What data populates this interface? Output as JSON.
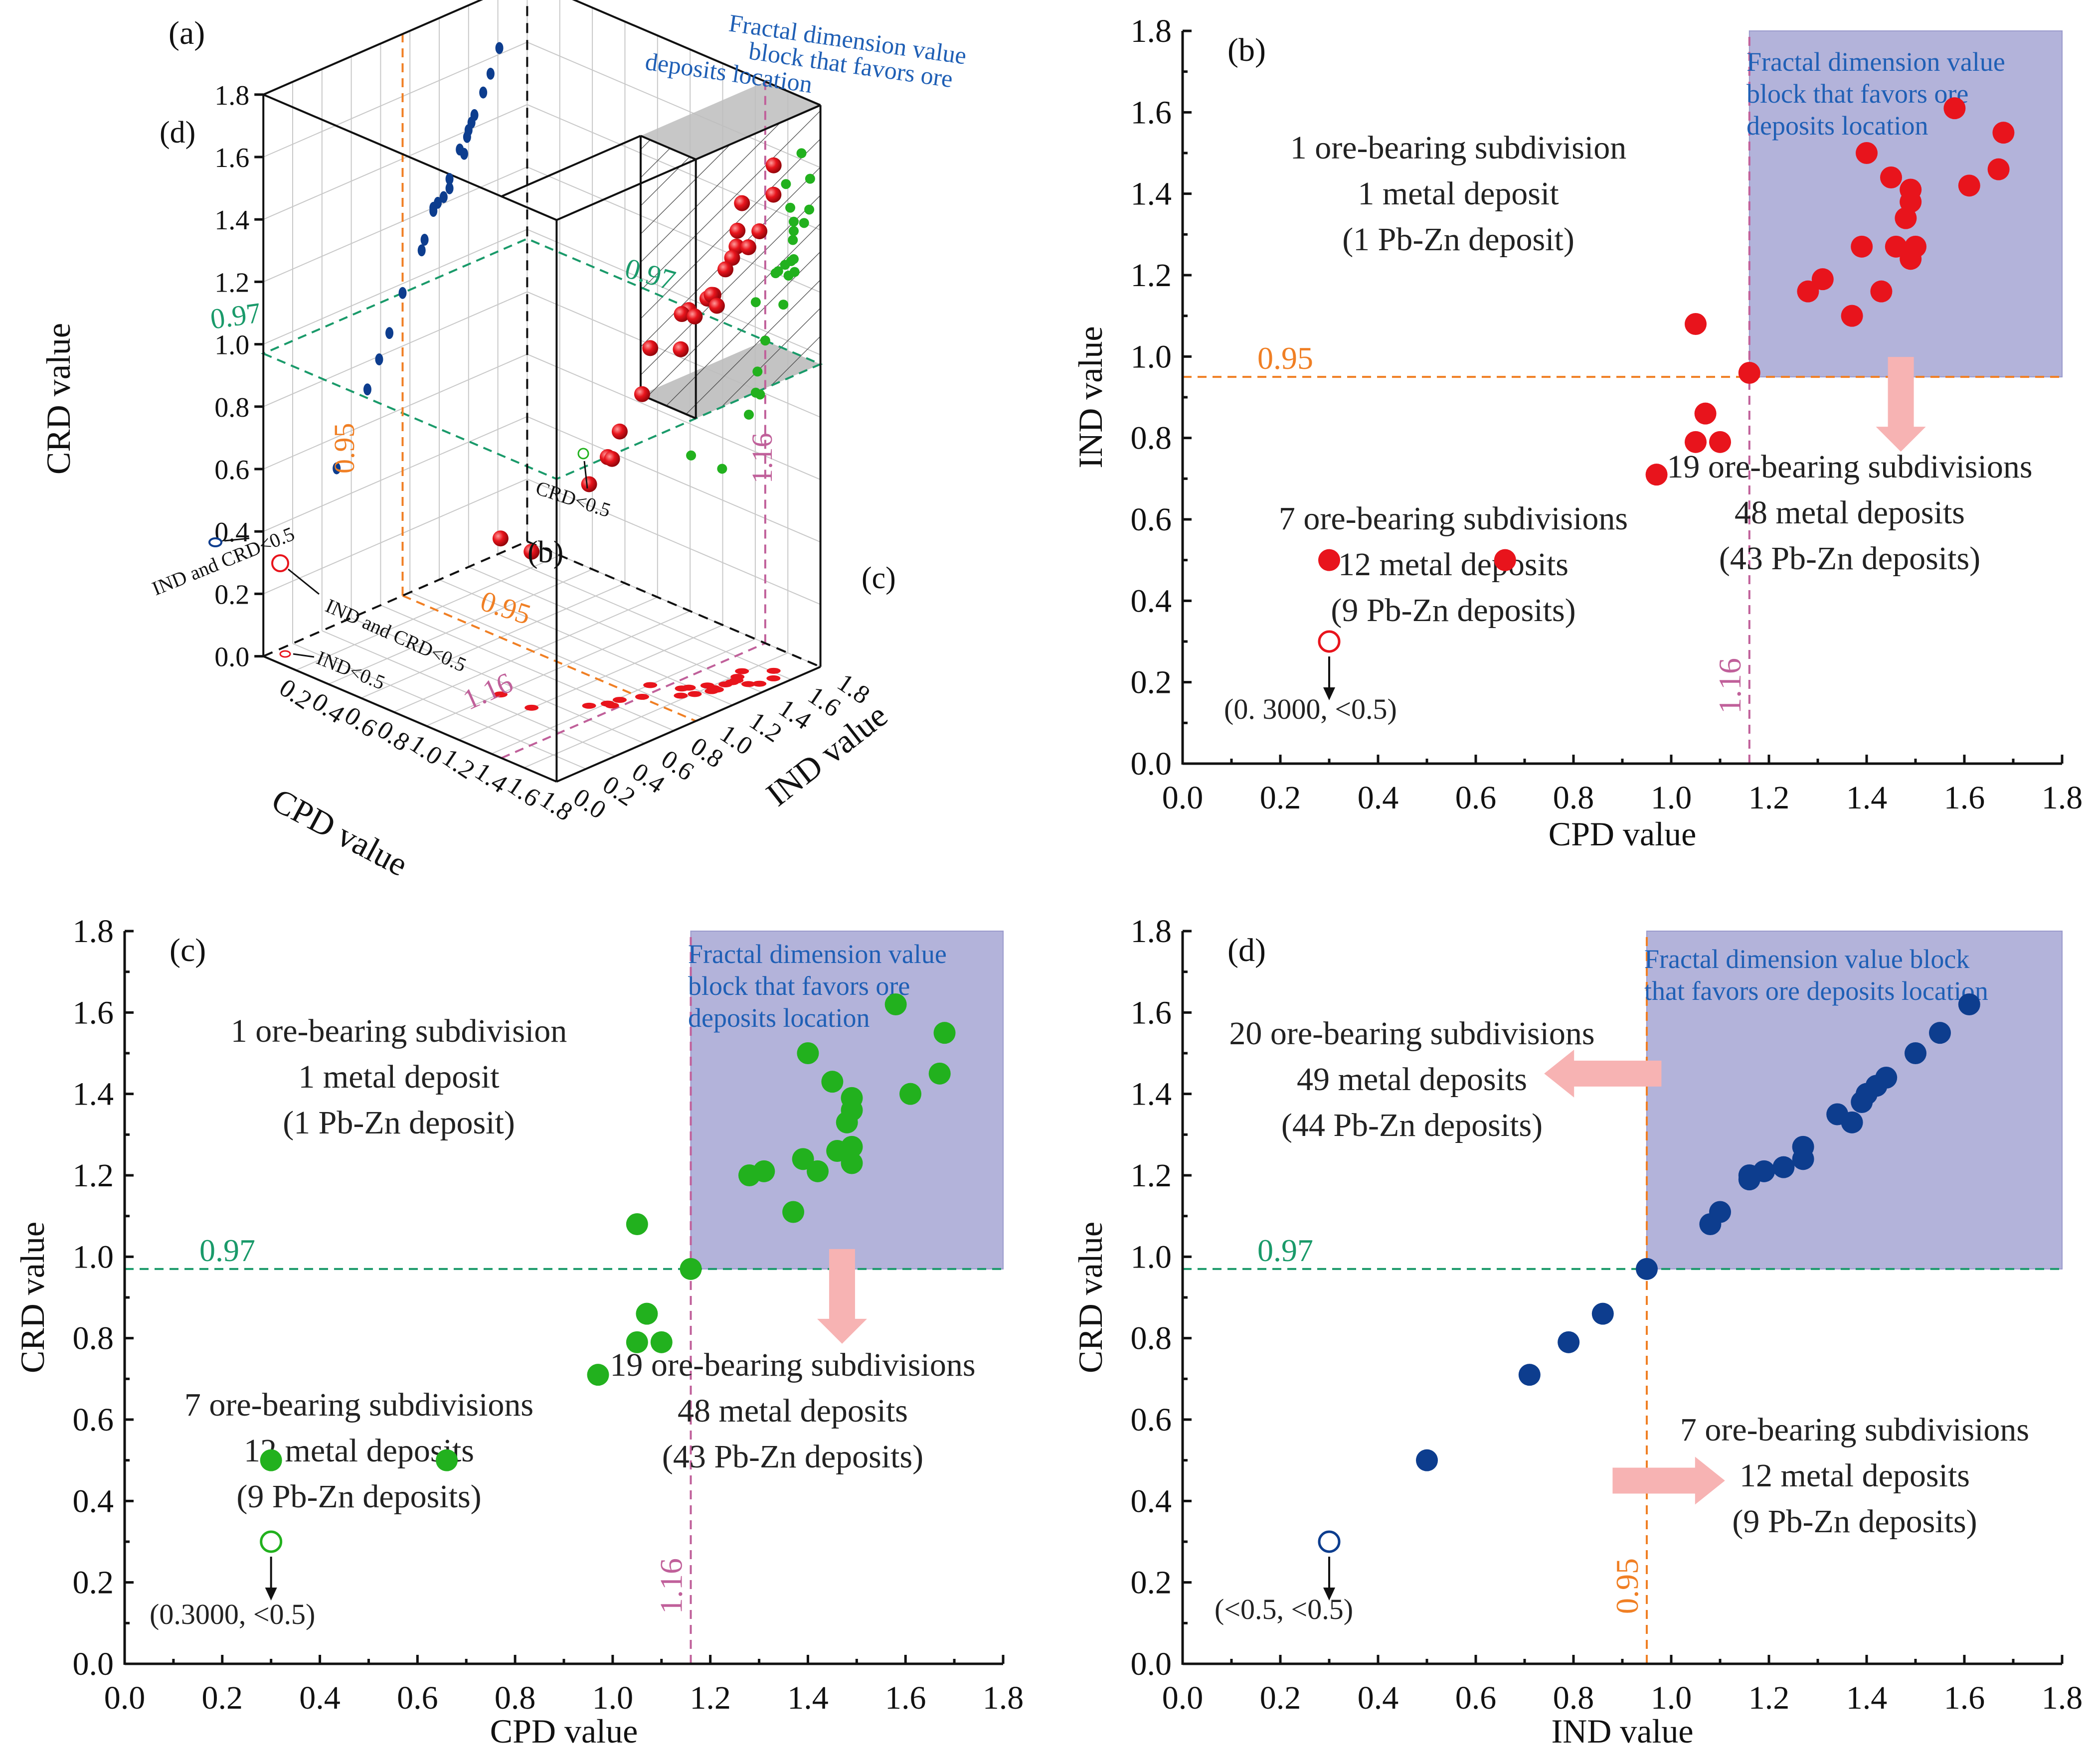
{
  "colors": {
    "red": "#e8141c",
    "green": "#22b11e",
    "blue": "#0d3d8e",
    "orange": "#f07f24",
    "teal": "#1a9a6a",
    "magenta": "#c0609a",
    "block_fill": "#b3b3da",
    "block_text": "#1f5fb5",
    "arrow_pink": "#f7b3b3",
    "gray_plane": "#bdbdbd"
  },
  "chart_data": [
    {
      "id": "b",
      "type": "scatter",
      "panel_label": "(b)",
      "xlabel": "CPD  value",
      "ylabel": "IND  value",
      "xlim": [
        0,
        1.8
      ],
      "ylim": [
        0,
        1.8
      ],
      "xticks": [
        "0.0",
        "0.2",
        "0.4",
        "0.6",
        "0.8",
        "1.0",
        "1.2",
        "1.4",
        "1.6",
        "1.8"
      ],
      "yticks": [
        "0.0",
        "0.2",
        "0.4",
        "0.6",
        "0.8",
        "1.0",
        "1.2",
        "1.4",
        "1.6",
        "1.8"
      ],
      "threshold_x": {
        "value": 1.16,
        "label": "1.16"
      },
      "threshold_y": {
        "value": 0.95,
        "label": "0.95"
      },
      "block_text": [
        "Fractal  dimension value",
        "block that favors ore",
        "deposits location"
      ],
      "annotations": {
        "upper_left": [
          "1 ore-bearing subdivision",
          "1 metal deposit",
          "(1 Pb-Zn deposit)"
        ],
        "lower_left": [
          "7 ore-bearing subdivisions",
          "12 metal deposits",
          "(9 Pb-Zn deposits)"
        ],
        "lower_right": [
          "19 ore-bearing subdivisions",
          "48 metal deposits",
          "(43 Pb-Zn deposits)"
        ],
        "hollow_label": "(0. 3000,  <0.5)"
      },
      "series": [
        {
          "name": "ore-bearing subdivisions",
          "x": [
            1.58,
            1.68,
            1.67,
            1.4,
            1.45,
            1.49,
            1.49,
            1.48,
            1.61,
            1.39,
            1.46,
            1.49,
            1.5,
            1.31,
            1.28,
            1.43,
            1.37,
            1.05,
            1.16,
            1.07,
            1.05,
            1.1,
            0.97,
            0.3,
            0.66
          ],
          "y": [
            1.61,
            1.55,
            1.46,
            1.5,
            1.44,
            1.41,
            1.38,
            1.34,
            1.42,
            1.27,
            1.27,
            1.24,
            1.27,
            1.19,
            1.16,
            1.16,
            1.1,
            1.08,
            0.96,
            0.86,
            0.79,
            0.79,
            0.71,
            0.5,
            0.5
          ]
        }
      ],
      "hollow": {
        "x": 0.3,
        "y": 0.3
      }
    },
    {
      "id": "c",
      "type": "scatter",
      "panel_label": "(c)",
      "xlabel": "CPD  value",
      "ylabel": "CRD  value",
      "xlim": [
        0,
        1.8
      ],
      "ylim": [
        0,
        1.8
      ],
      "xticks": [
        "0.0",
        "0.2",
        "0.4",
        "0.6",
        "0.8",
        "1.0",
        "1.2",
        "1.4",
        "1.6",
        "1.8"
      ],
      "yticks": [
        "0.0",
        "0.2",
        "0.4",
        "0.6",
        "0.8",
        "1.0",
        "1.2",
        "1.4",
        "1.6",
        "1.8"
      ],
      "threshold_x": {
        "value": 1.16,
        "label": "1.16"
      },
      "threshold_y": {
        "value": 0.97,
        "label": "0.97"
      },
      "block_text": [
        "Fractal  dimension value",
        "block that favors ore",
        "deposits location"
      ],
      "annotations": {
        "upper_left": [
          "1 ore-bearing subdivision",
          "1 metal deposit",
          "(1 Pb-Zn deposit)"
        ],
        "lower_left": [
          "7 ore-bearing subdivisions",
          "12 metal deposits",
          "(9 Pb-Zn deposits)"
        ],
        "lower_right": [
          "19 ore-bearing subdivisions",
          "48 metal deposits",
          "(43 Pb-Zn deposits)"
        ],
        "hollow_label": "(0.3000,  <0.5)"
      },
      "series": [
        {
          "name": "ore-bearing subdivisions",
          "x": [
            1.58,
            1.68,
            1.67,
            1.4,
            1.45,
            1.49,
            1.49,
            1.48,
            1.61,
            1.39,
            1.46,
            1.49,
            1.49,
            1.31,
            1.28,
            1.42,
            1.37,
            1.05,
            1.16,
            1.07,
            1.05,
            1.1,
            0.97,
            0.3,
            0.66
          ],
          "y": [
            1.62,
            1.55,
            1.45,
            1.5,
            1.43,
            1.39,
            1.36,
            1.33,
            1.4,
            1.24,
            1.26,
            1.27,
            1.23,
            1.21,
            1.2,
            1.21,
            1.11,
            1.08,
            0.97,
            0.86,
            0.79,
            0.79,
            0.71,
            0.5,
            0.5
          ]
        }
      ],
      "hollow": {
        "x": 0.3,
        "y": 0.3
      }
    },
    {
      "id": "d",
      "type": "scatter",
      "panel_label": "(d)",
      "xlabel": "IND  value",
      "ylabel": "CRD  value",
      "xlim": [
        0,
        1.8
      ],
      "ylim": [
        0,
        1.8
      ],
      "xticks": [
        "0.0",
        "0.2",
        "0.4",
        "0.6",
        "0.8",
        "1.0",
        "1.2",
        "1.4",
        "1.6",
        "1.8"
      ],
      "yticks": [
        "0.0",
        "0.2",
        "0.4",
        "0.6",
        "0.8",
        "1.0",
        "1.2",
        "1.4",
        "1.6",
        "1.8"
      ],
      "threshold_x": {
        "value": 0.95,
        "label": "0.95"
      },
      "threshold_y": {
        "value": 0.97,
        "label": "0.97"
      },
      "block_text": [
        "Fractal  dimension value block",
        "that favors ore deposits location"
      ],
      "annotations": {
        "upper_left": [
          "20 ore-bearing subdivisions",
          "49 metal deposits",
          "(44 Pb-Zn deposits)"
        ],
        "lower_right": [
          "7 ore-bearing subdivisions",
          "12 metal deposits",
          "(9 Pb-Zn deposits)"
        ],
        "hollow_label": "(<0.5,  <0.5)"
      },
      "series": [
        {
          "name": "ore-bearing subdivisions",
          "x": [
            1.61,
            1.55,
            1.5,
            1.44,
            1.42,
            1.4,
            1.39,
            1.37,
            1.34,
            1.27,
            1.27,
            1.23,
            1.19,
            1.16,
            1.16,
            1.1,
            1.08,
            0.95,
            0.86,
            0.79,
            0.71,
            0.5
          ],
          "y": [
            1.62,
            1.55,
            1.5,
            1.44,
            1.42,
            1.4,
            1.38,
            1.33,
            1.35,
            1.27,
            1.24,
            1.22,
            1.21,
            1.2,
            1.19,
            1.11,
            1.08,
            0.97,
            0.86,
            0.79,
            0.71,
            0.5
          ]
        }
      ],
      "hollow": {
        "x": 0.3,
        "y": 0.3
      }
    },
    {
      "id": "a",
      "type": "scatter3d",
      "panel_label": "(a)",
      "xlabel": "CPD  value",
      "ylabel": "IND value",
      "zlabel": "CRD value",
      "ticks": [
        "0.0",
        "0.2",
        "0.4",
        "0.6",
        "0.8",
        "1.0",
        "1.2",
        "1.4",
        "1.6",
        "1.8"
      ],
      "xticks": [
        "0.2",
        "0.4",
        "0.6",
        "0.8",
        "1.0",
        "1.2",
        "1.4",
        "1.6",
        "1.8"
      ],
      "block_text": [
        "Fractal  dimension value",
        "block that favors ore",
        "deposits location"
      ],
      "inner_labels": {
        "d": "(d)",
        "b": "(b)",
        "c": "(c)"
      },
      "threshold_labels": {
        "crd": "0.97",
        "ind": "0.95",
        "cpd": "1.16"
      },
      "notes": {
        "ind_crd_left": "IND and CRD<0.5",
        "ind_crd_floor": "IND and CRD<0.5",
        "ind_floor": "IND<0.5",
        "crd_right": "CRD<0.5"
      }
    }
  ]
}
